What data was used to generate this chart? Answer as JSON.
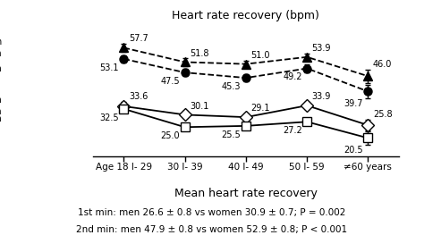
{
  "title": "Heart rate recovery (bpm)",
  "xlabel": "Mean heart rate recovery",
  "x_labels": [
    "Age 18 l- 29",
    "30 l- 39",
    "40 l- 49",
    "50 l- 59",
    "≠60 years"
  ],
  "x_positions": [
    0,
    1,
    2,
    3,
    4
  ],
  "min2_women_values": [
    57.7,
    51.8,
    51.0,
    53.9,
    46.0
  ],
  "min2_men_values": [
    53.1,
    47.5,
    45.3,
    49.2,
    39.7
  ],
  "min1_women_values": [
    33.6,
    30.1,
    29.1,
    33.9,
    25.8
  ],
  "min1_men_values": [
    32.5,
    25.0,
    25.5,
    27.2,
    20.5
  ],
  "min2_women_err": [
    1.8,
    1.5,
    1.5,
    1.5,
    2.8
  ],
  "min2_men_err": [
    1.5,
    1.5,
    1.5,
    1.5,
    2.8
  ],
  "min1_women_err": [
    1.8,
    1.5,
    1.5,
    1.5,
    2.2
  ],
  "min1_men_err": [
    1.5,
    1.5,
    1.5,
    1.5,
    2.8
  ],
  "footer_line1": "1st min: men 26.6 ± 0.8 vs women 30.9 ± 0.7; P = 0.002",
  "footer_line2": "2nd min: men 47.9 ± 0.8 vs women 52.9 ± 0.8; P < 0.001"
}
